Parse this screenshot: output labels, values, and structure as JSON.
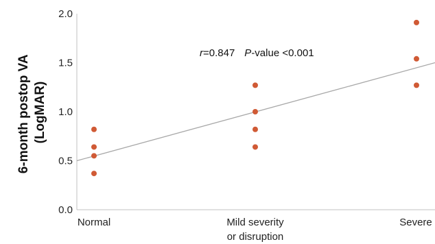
{
  "chart_data": {
    "type": "scatter",
    "title": "",
    "ylabel_lines": [
      "6-month postop VA",
      "(LogMAR)"
    ],
    "xlabel": "",
    "categories": [
      [
        "Normal"
      ],
      [
        "Mild severity",
        "or disruption"
      ],
      [
        "Severe"
      ]
    ],
    "ylim": [
      0,
      2
    ],
    "yticks": [
      "0.0",
      "0.5",
      "1.0",
      "1.5",
      "2.0"
    ],
    "ytick_values": [
      0,
      0.5,
      1.0,
      1.5,
      2.0
    ],
    "points": [
      {
        "category": 0,
        "y": 0.82
      },
      {
        "category": 0,
        "y": 0.64
      },
      {
        "category": 0,
        "y": 0.55
      },
      {
        "category": 0,
        "y": 0.37
      },
      {
        "category": 1,
        "y": 1.27
      },
      {
        "category": 1,
        "y": 1.0
      },
      {
        "category": 1,
        "y": 0.82
      },
      {
        "category": 1,
        "y": 0.64
      },
      {
        "category": 2,
        "y": 1.91
      },
      {
        "category": 2,
        "y": 1.54
      },
      {
        "category": 2,
        "y": 1.27
      }
    ],
    "trendline": {
      "start_y": 0.5,
      "end_y": 1.5
    },
    "annotation": {
      "r_symbol": "r",
      "r_text": "=0.847",
      "p_symbol": "P",
      "p_text": "-value <0.001"
    },
    "grid": false,
    "legend": "none",
    "colors": {
      "points": "#d05a35",
      "trendline": "#a8a8a8",
      "axis": "#c0c0c0"
    }
  }
}
